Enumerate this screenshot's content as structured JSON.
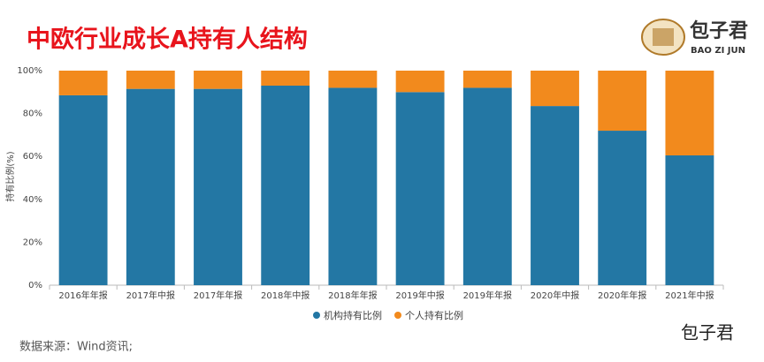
{
  "header": {
    "title": "中欧行业成长A持有人结构",
    "logo_name": "包子君",
    "logo_pinyin": "BAO ZI JUN"
  },
  "chart_data": {
    "type": "stacked-bar",
    "y_label": "持有比例(%)",
    "categories": [
      "2016年年报",
      "2017年中报",
      "2017年年报",
      "2018年中报",
      "2018年年报",
      "2019年中报",
      "2019年年报",
      "2020年中报",
      "2020年年报",
      "2021年中报"
    ],
    "series": [
      {
        "name": "机构持有比例",
        "color": "#2377a4",
        "values": [
          88.5,
          91.5,
          91.5,
          93,
          92,
          90,
          92,
          83.5,
          72,
          60.5
        ]
      },
      {
        "name": "个人持有比例",
        "color": "#f28a1d",
        "values": [
          11.5,
          8.5,
          8.5,
          7,
          8,
          10,
          8,
          16.5,
          28,
          39.5
        ]
      }
    ],
    "ylim": [
      0,
      100
    ],
    "yticks": [
      {
        "value": 0,
        "label": "0%"
      },
      {
        "value": 20,
        "label": "20%"
      },
      {
        "value": 40,
        "label": "40%"
      },
      {
        "value": 60,
        "label": "60%"
      },
      {
        "value": 80,
        "label": "80%"
      },
      {
        "value": 100,
        "label": "100%"
      }
    ]
  },
  "footer": {
    "source": "数据来源：Wind资讯;",
    "watermark": "包子君"
  }
}
